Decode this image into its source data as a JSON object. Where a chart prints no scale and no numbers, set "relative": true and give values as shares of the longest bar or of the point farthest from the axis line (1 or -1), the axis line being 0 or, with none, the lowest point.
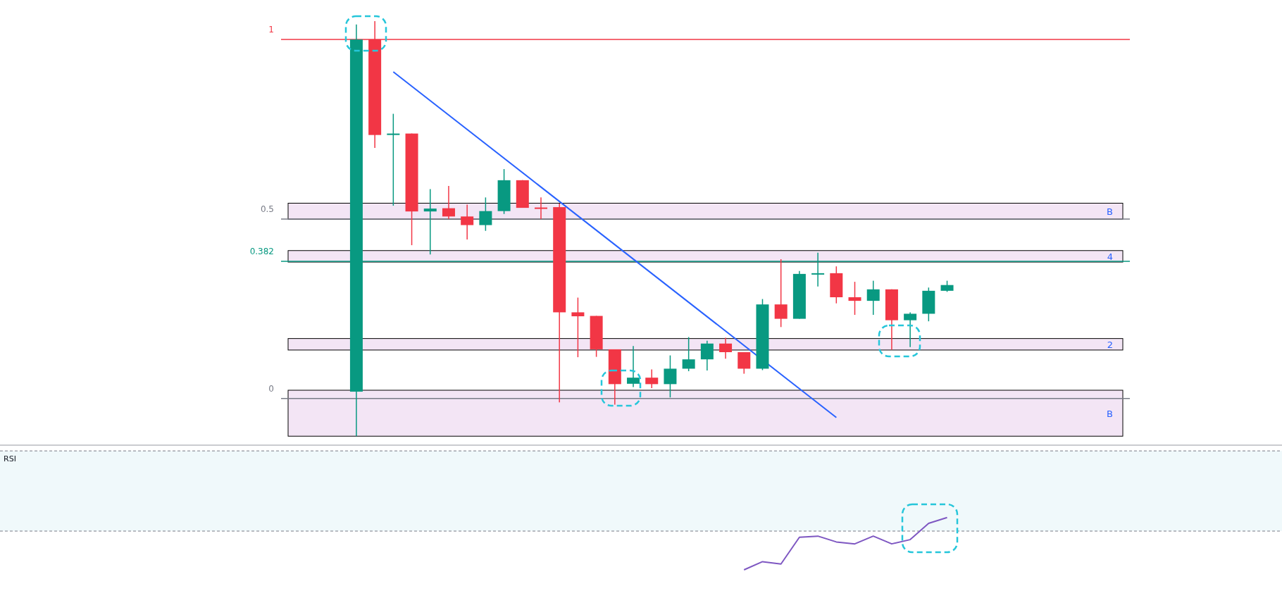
{
  "chart_data": [
    {
      "type": "candlestick",
      "categories": [
        null,
        null,
        null,
        null,
        null,
        null,
        null,
        null,
        null,
        null,
        null,
        null,
        null,
        null,
        null,
        null,
        null,
        null,
        null,
        null,
        null,
        null,
        null,
        null,
        null,
        null,
        null,
        null,
        null,
        null,
        null,
        null,
        null
      ],
      "ohlc": [
        [
          0.019,
          1.042,
          -0.105,
          1.0
        ],
        [
          1.0,
          1.051,
          0.698,
          0.734
        ],
        [
          0.734,
          0.793,
          0.537,
          0.738
        ],
        [
          0.738,
          0.738,
          0.427,
          0.521
        ],
        [
          0.521,
          0.583,
          0.401,
          0.529
        ],
        [
          0.53,
          0.592,
          0.5,
          0.507
        ],
        [
          0.507,
          0.54,
          0.443,
          0.483
        ],
        [
          0.483,
          0.56,
          0.467,
          0.522
        ],
        [
          0.522,
          0.639,
          0.514,
          0.608
        ],
        [
          0.608,
          0.608,
          0.531,
          0.531
        ],
        [
          0.532,
          0.56,
          0.5,
          0.531
        ],
        [
          0.533,
          0.543,
          -0.011,
          0.24
        ],
        [
          0.24,
          0.281,
          0.115,
          0.229
        ],
        [
          0.23,
          0.23,
          0.116,
          0.137
        ],
        [
          0.137,
          0.137,
          -0.017,
          0.04
        ],
        [
          0.041,
          0.146,
          0.032,
          0.058
        ],
        [
          0.058,
          0.081,
          0.029,
          0.04
        ],
        [
          0.04,
          0.12,
          0.003,
          0.083
        ],
        [
          0.083,
          0.171,
          0.076,
          0.109
        ],
        [
          0.109,
          0.161,
          0.078,
          0.153
        ],
        [
          0.153,
          0.169,
          0.111,
          0.129
        ],
        [
          0.129,
          0.129,
          0.069,
          0.083
        ],
        [
          0.083,
          0.277,
          0.079,
          0.262
        ],
        [
          0.262,
          0.388,
          0.199,
          0.222
        ],
        [
          0.222,
          0.355,
          0.222,
          0.347
        ],
        [
          0.347,
          0.406,
          0.312,
          0.349
        ],
        [
          0.349,
          0.368,
          0.265,
          0.282
        ],
        [
          0.282,
          0.325,
          0.233,
          0.272
        ],
        [
          0.272,
          0.328,
          0.233,
          0.304
        ],
        [
          0.304,
          0.304,
          0.136,
          0.218
        ],
        [
          0.218,
          0.24,
          0.143,
          0.236
        ],
        [
          0.236,
          0.309,
          0.215,
          0.3
        ],
        [
          0.3,
          0.328,
          0.297,
          0.316
        ]
      ],
      "series": [
        {
          "type": "line",
          "color": "#2962ff",
          "values": [
            null,
            null,
            0.91,
            null,
            null,
            null,
            null,
            null,
            null,
            null,
            null,
            null,
            null,
            null,
            null,
            null,
            null,
            null,
            null,
            null,
            null,
            null,
            null,
            null,
            null,
            null,
            -0.053,
            null,
            null,
            null,
            null,
            null,
            null
          ]
        }
      ],
      "ylim": [
        -0.13,
        1.11
      ],
      "ref_lines": [
        {
          "axis": "y",
          "value": 1,
          "label": "1",
          "color": "#f23645"
        },
        {
          "axis": "y",
          "value": 0.5,
          "label": "0.5",
          "color": "#787b86"
        },
        {
          "axis": "y",
          "value": 0.382,
          "label": "0.382",
          "color": "#089981"
        },
        {
          "axis": "y",
          "value": 0,
          "label": "0",
          "color": "#787b86"
        }
      ],
      "bands": [
        {
          "axis": "y",
          "from": 0.4995,
          "to": 0.544,
          "label": "B",
          "color": "#f3e5f5"
        },
        {
          "axis": "y",
          "from": 0.38,
          "to": 0.412,
          "label": "4",
          "color": "#f3e5f5"
        },
        {
          "axis": "y",
          "from": 0.135,
          "to": 0.167,
          "label": "2",
          "color": "#f3e5f5"
        },
        {
          "axis": "y",
          "from": -0.105,
          "to": 0.023,
          "label": "B",
          "color": "#f3e5f5"
        }
      ]
    },
    {
      "type": "line",
      "annotations": [
        "RSI"
      ],
      "relative": true,
      "ref_lines": [
        {
          "axis": "y",
          "value": 2.07,
          "color": "#787b86",
          "line_style": "dashed"
        },
        {
          "axis": "y",
          "value": 0,
          "color": "#787b86",
          "line_style": "dashed"
        }
      ],
      "categories": [
        null,
        null,
        null,
        null,
        null,
        null,
        null,
        null,
        null,
        null,
        null,
        null
      ],
      "series": [
        {
          "color": "#7e57c2",
          "values": [
            -1,
            -0.79,
            -0.85,
            -0.16,
            -0.13,
            -0.28,
            -0.33,
            -0.13,
            -0.33,
            -0.22,
            0.2,
            0.35
          ]
        }
      ]
    }
  ]
}
